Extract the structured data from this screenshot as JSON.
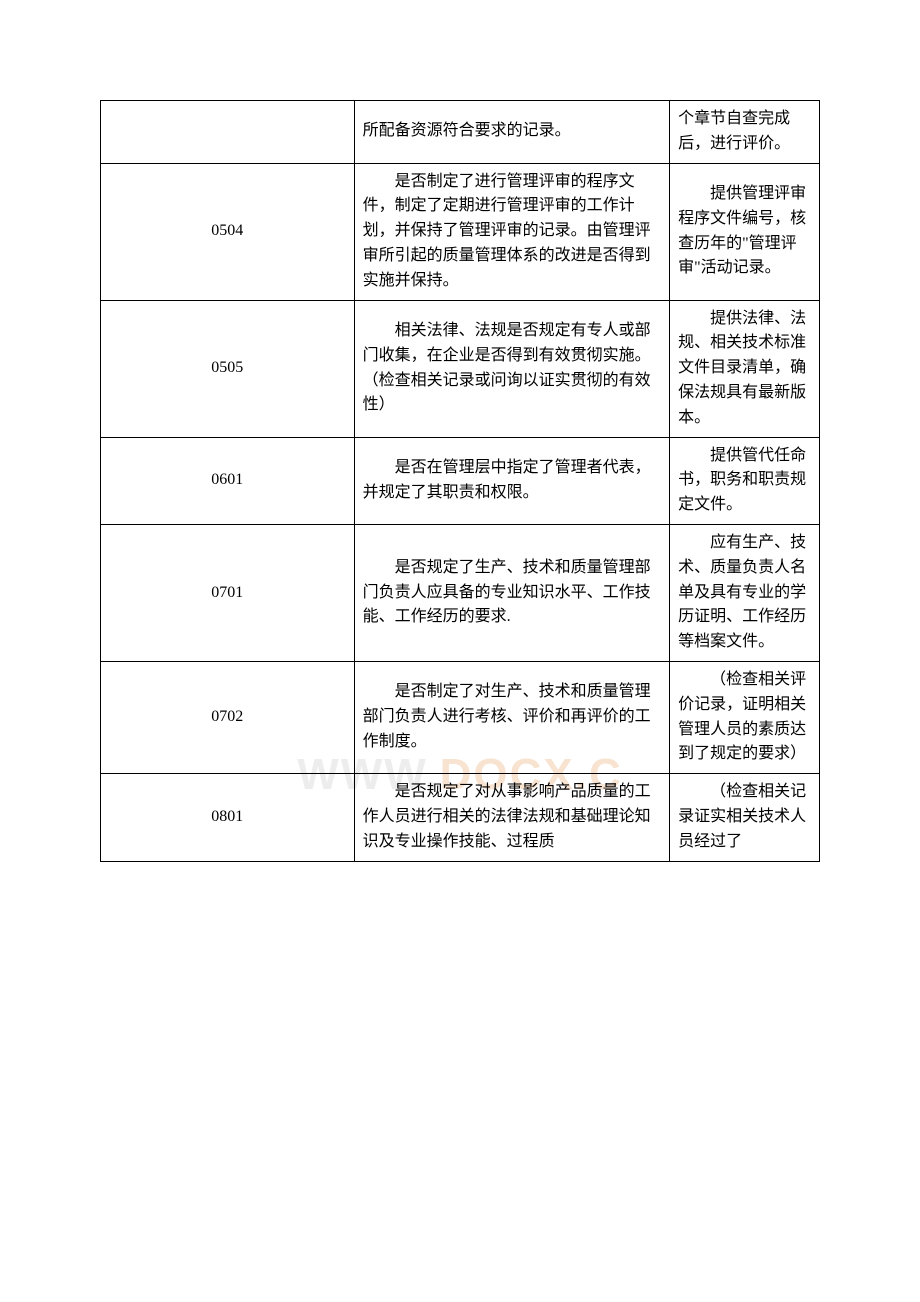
{
  "watermark": {
    "left": "WWW.",
    "right": "DOCX.C"
  },
  "table": {
    "rows": [
      {
        "id": "",
        "desc": "所配备资源符合要求的记录。",
        "note": "个章节自查完成后，进行评价。"
      },
      {
        "id": "0504",
        "desc": "是否制定了进行管理评审的程序文件，制定了定期进行管理评审的工作计划，并保持了管理评审的记录。由管理评审所引起的质量管理体系的改进是否得到实施并保持。",
        "note": "提供管理评审程序文件编号，核查历年的\"管理评审\"活动记录。"
      },
      {
        "id": "0505",
        "desc": "相关法律、法规是否规定有专人或部门收集，在企业是否得到有效贯彻实施。（检查相关记录或问询以证实贯彻的有效性）",
        "note": "提供法律、法规、相关技术标准文件目录清单，确保法规具有最新版本。"
      },
      {
        "id": "0601",
        "desc": "是否在管理层中指定了管理者代表，并规定了其职责和权限。",
        "note": "提供管代任命书，职务和职责规定文件。"
      },
      {
        "id": "0701",
        "desc": "是否规定了生产、技术和质量管理部门负责人应具备的专业知识水平、工作技能、工作经历的要求.",
        "note": "应有生产、技术、质量负责人名单及具有专业的学历证明、工作经历等档案文件。"
      },
      {
        "id": "0702",
        "desc": "是否制定了对生产、技术和质量管理部门负责人进行考核、评价和再评价的工作制度。",
        "note": "（检查相关评价记录，证明相关管理人员的素质达到了规定的要求）"
      },
      {
        "id": "0801",
        "desc": "是否规定了对从事影响产品质量的工作人员进行相关的法律法规和基础理论知识及专业操作技能、过程质",
        "note": "（检查相关记录证实相关技术人员经过了"
      }
    ]
  }
}
